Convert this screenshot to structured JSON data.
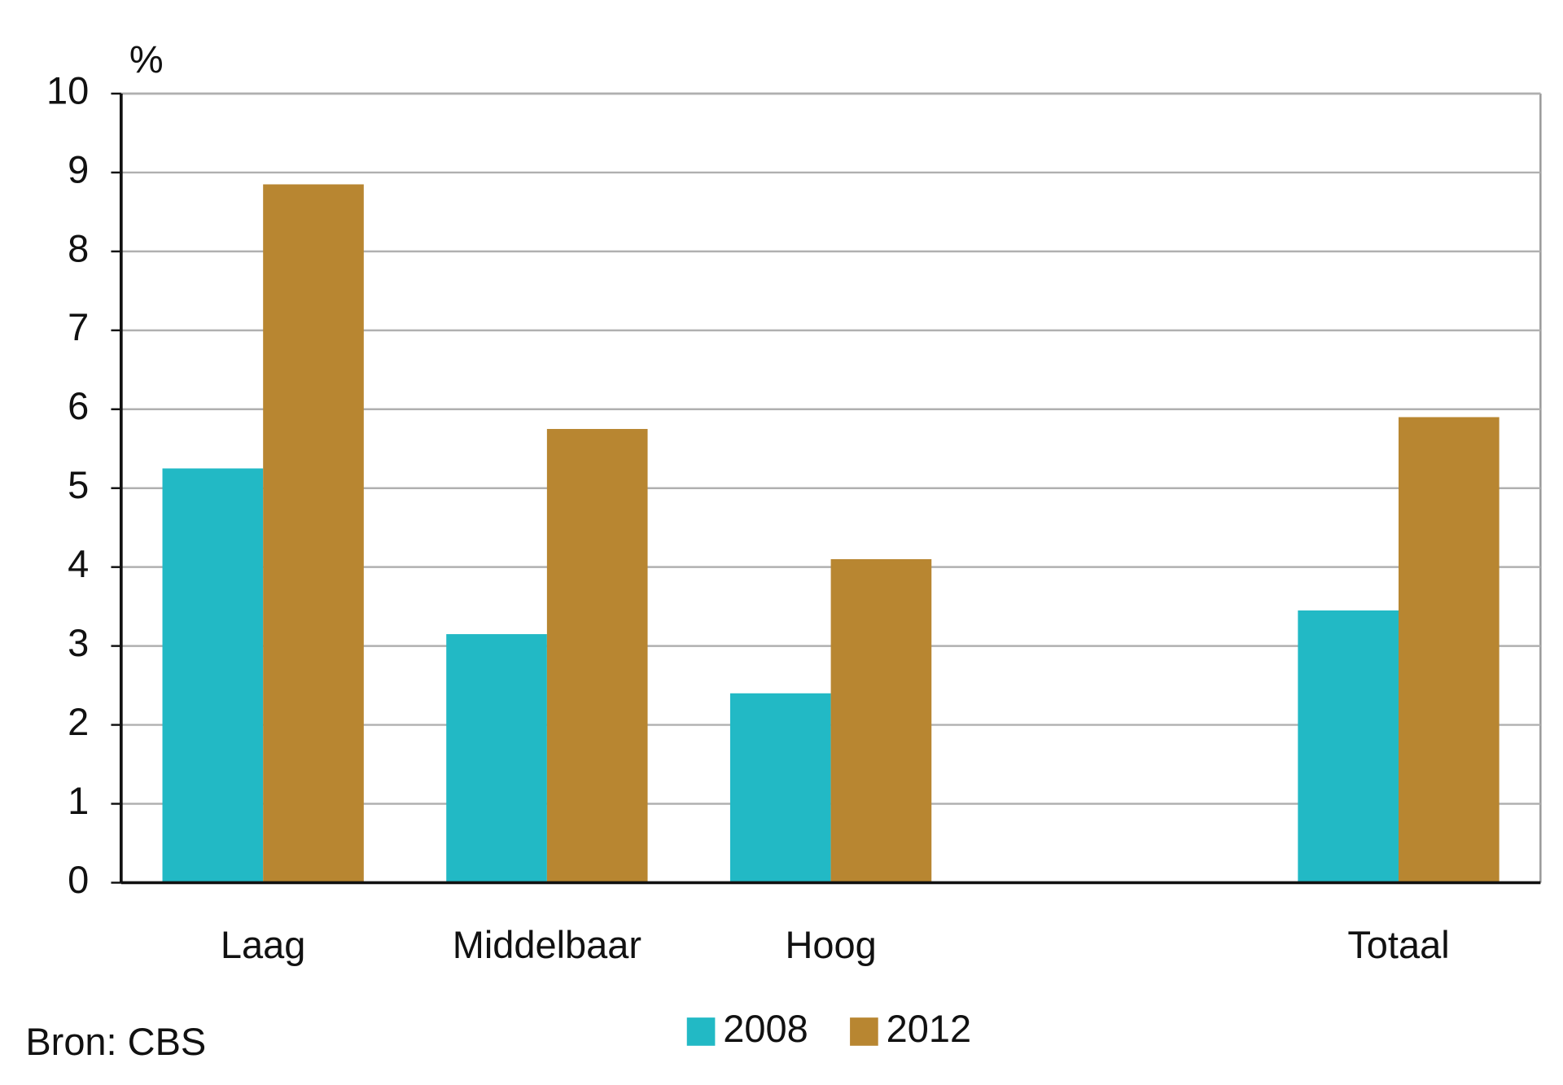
{
  "chart_data": {
    "type": "bar",
    "y_label": "%",
    "source": "Bron: CBS",
    "categories": [
      "Laag",
      "Middelbaar",
      "Hoog",
      null,
      "Totaal"
    ],
    "series": [
      {
        "name": "2008",
        "color": "#22b9c5",
        "values": [
          5.25,
          3.15,
          2.4,
          null,
          3.45
        ]
      },
      {
        "name": "2012",
        "color": "#b88631",
        "values": [
          8.85,
          5.75,
          4.1,
          null,
          5.9
        ]
      }
    ],
    "ylim": [
      0,
      10
    ],
    "yticks": [
      0,
      1,
      2,
      3,
      4,
      5,
      6,
      7,
      8,
      9,
      10
    ],
    "grid": true,
    "legend": "bottom"
  }
}
